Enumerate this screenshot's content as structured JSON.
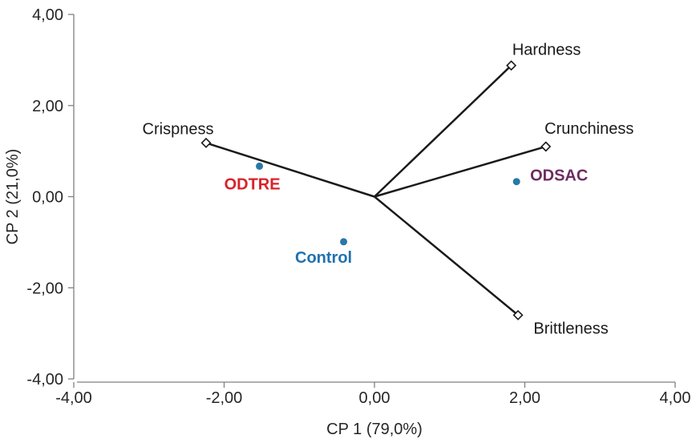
{
  "chart_data": {
    "type": "scatter",
    "subtype": "pca-biplot",
    "title": "",
    "xlabel": "CP 1 (79,0%)",
    "ylabel": "CP 2 (21,0%)",
    "xlim": [
      -4,
      4
    ],
    "ylim": [
      -4,
      4
    ],
    "grid": false,
    "legend": "none",
    "decimal_separator": ",",
    "x_ticks": [
      {
        "value": -4,
        "label": "-4,00"
      },
      {
        "value": -2,
        "label": "-2,00"
      },
      {
        "value": 0,
        "label": "0,00"
      },
      {
        "value": 2,
        "label": "2,00"
      },
      {
        "value": 4,
        "label": "4,00"
      }
    ],
    "y_ticks": [
      {
        "value": 4,
        "label": "4,00"
      },
      {
        "value": 2,
        "label": "2,00"
      },
      {
        "value": 0,
        "label": "0,00"
      },
      {
        "value": -2,
        "label": "-2,00"
      },
      {
        "value": -4,
        "label": "-4,00"
      }
    ],
    "loading_vectors": [
      {
        "name": "Hardness",
        "x": 1.82,
        "y": 2.88,
        "label_offset": [
          44,
          -20
        ]
      },
      {
        "name": "Crunchiness",
        "x": 2.28,
        "y": 1.1,
        "label_offset": [
          54,
          -23
        ]
      },
      {
        "name": "Crispness",
        "x": -2.24,
        "y": 1.18,
        "label_offset": [
          -35,
          -18
        ]
      },
      {
        "name": "Brittleness",
        "x": 1.91,
        "y": -2.6,
        "label_offset": [
          66,
          16
        ]
      }
    ],
    "samples": [
      {
        "name": "ODTRE",
        "x": -1.53,
        "y": 0.67,
        "label_color": "#d8222a",
        "label_offset": [
          -9,
          22
        ]
      },
      {
        "name": "ODSAC",
        "x": 1.89,
        "y": 0.33,
        "label_color": "#6e2d5f",
        "label_offset": [
          53,
          -8
        ]
      },
      {
        "name": "Control",
        "x": -0.41,
        "y": -0.99,
        "label_color": "#1f72b0",
        "label_offset": [
          -25,
          19
        ]
      }
    ],
    "styles": {
      "background": "#ffffff",
      "axis_color": "#808080",
      "tick_label_color": "#262626",
      "axis_title_color": "#262626",
      "vector_color": "#1a1a1a",
      "vector_label_color": "#1a1a1a",
      "vector_marker_fill": "#ffffff",
      "marker_color": "#2878a8"
    }
  }
}
